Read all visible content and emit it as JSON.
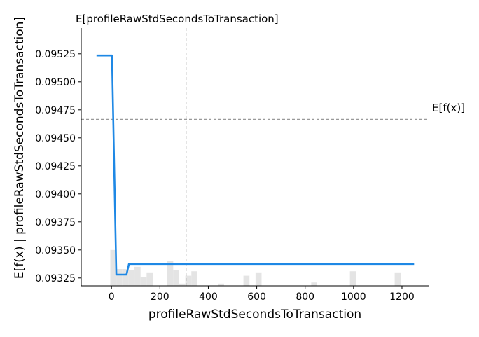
{
  "chart_data": {
    "type": "line",
    "title": "",
    "xlabel": "profileRawStdSecondsToTransaction",
    "ylabel": "E[f(x) | profileRawStdSecondsToTransaction]",
    "top_label": "E[profileRawStdSecondsToTransaction]",
    "hline_label": "E[f(x)]",
    "xlim": [
      -125,
      1310
    ],
    "ylim": [
      0.09318,
      0.09548
    ],
    "x_ticks": [
      0,
      200,
      400,
      600,
      800,
      1000,
      1200
    ],
    "y_ticks": [
      0.09325,
      0.0935,
      0.09375,
      0.094,
      0.09425,
      0.0945,
      0.09475,
      0.095,
      0.09525
    ],
    "y_tick_labels": [
      "0.09325",
      "0.09350",
      "0.09375",
      "0.09400",
      "0.09425",
      "0.09450",
      "0.09475",
      "0.09500",
      "0.09525"
    ],
    "expected_x": 308,
    "expected_fx": 0.094665,
    "series": [
      {
        "x": [
          -62,
          2,
          20,
          42,
          62,
          72,
          200,
          400,
          600,
          800,
          1000,
          1200,
          1250
        ],
        "y": [
          0.095235,
          0.095235,
          0.09328,
          0.09328,
          0.09328,
          0.093375,
          0.093375,
          0.093375,
          0.093375,
          0.093375,
          0.093375,
          0.093375,
          0.093375
        ]
      }
    ],
    "histogram": {
      "bins": [
        [
          -5,
          20,
          0.0935
        ],
        [
          20,
          45,
          0.09333
        ],
        [
          45,
          70,
          0.09333
        ],
        [
          70,
          95,
          0.09332
        ],
        [
          95,
          120,
          0.09335
        ],
        [
          120,
          145,
          0.09326
        ],
        [
          145,
          170,
          0.0933
        ],
        [
          230,
          255,
          0.0934
        ],
        [
          255,
          280,
          0.09332
        ],
        [
          280,
          305,
          0.0932
        ],
        [
          305,
          330,
          0.09327
        ],
        [
          330,
          355,
          0.09331
        ],
        [
          440,
          465,
          0.0932
        ],
        [
          545,
          570,
          0.09327
        ],
        [
          595,
          620,
          0.0933
        ],
        [
          825,
          850,
          0.09321
        ],
        [
          985,
          1010,
          0.09331
        ],
        [
          1170,
          1195,
          0.0933
        ]
      ]
    },
    "colors": {
      "line": "#1e88e5",
      "hist": "#e4e4e4",
      "dashed": "#999999",
      "axis": "#000000"
    },
    "grid": false
  }
}
